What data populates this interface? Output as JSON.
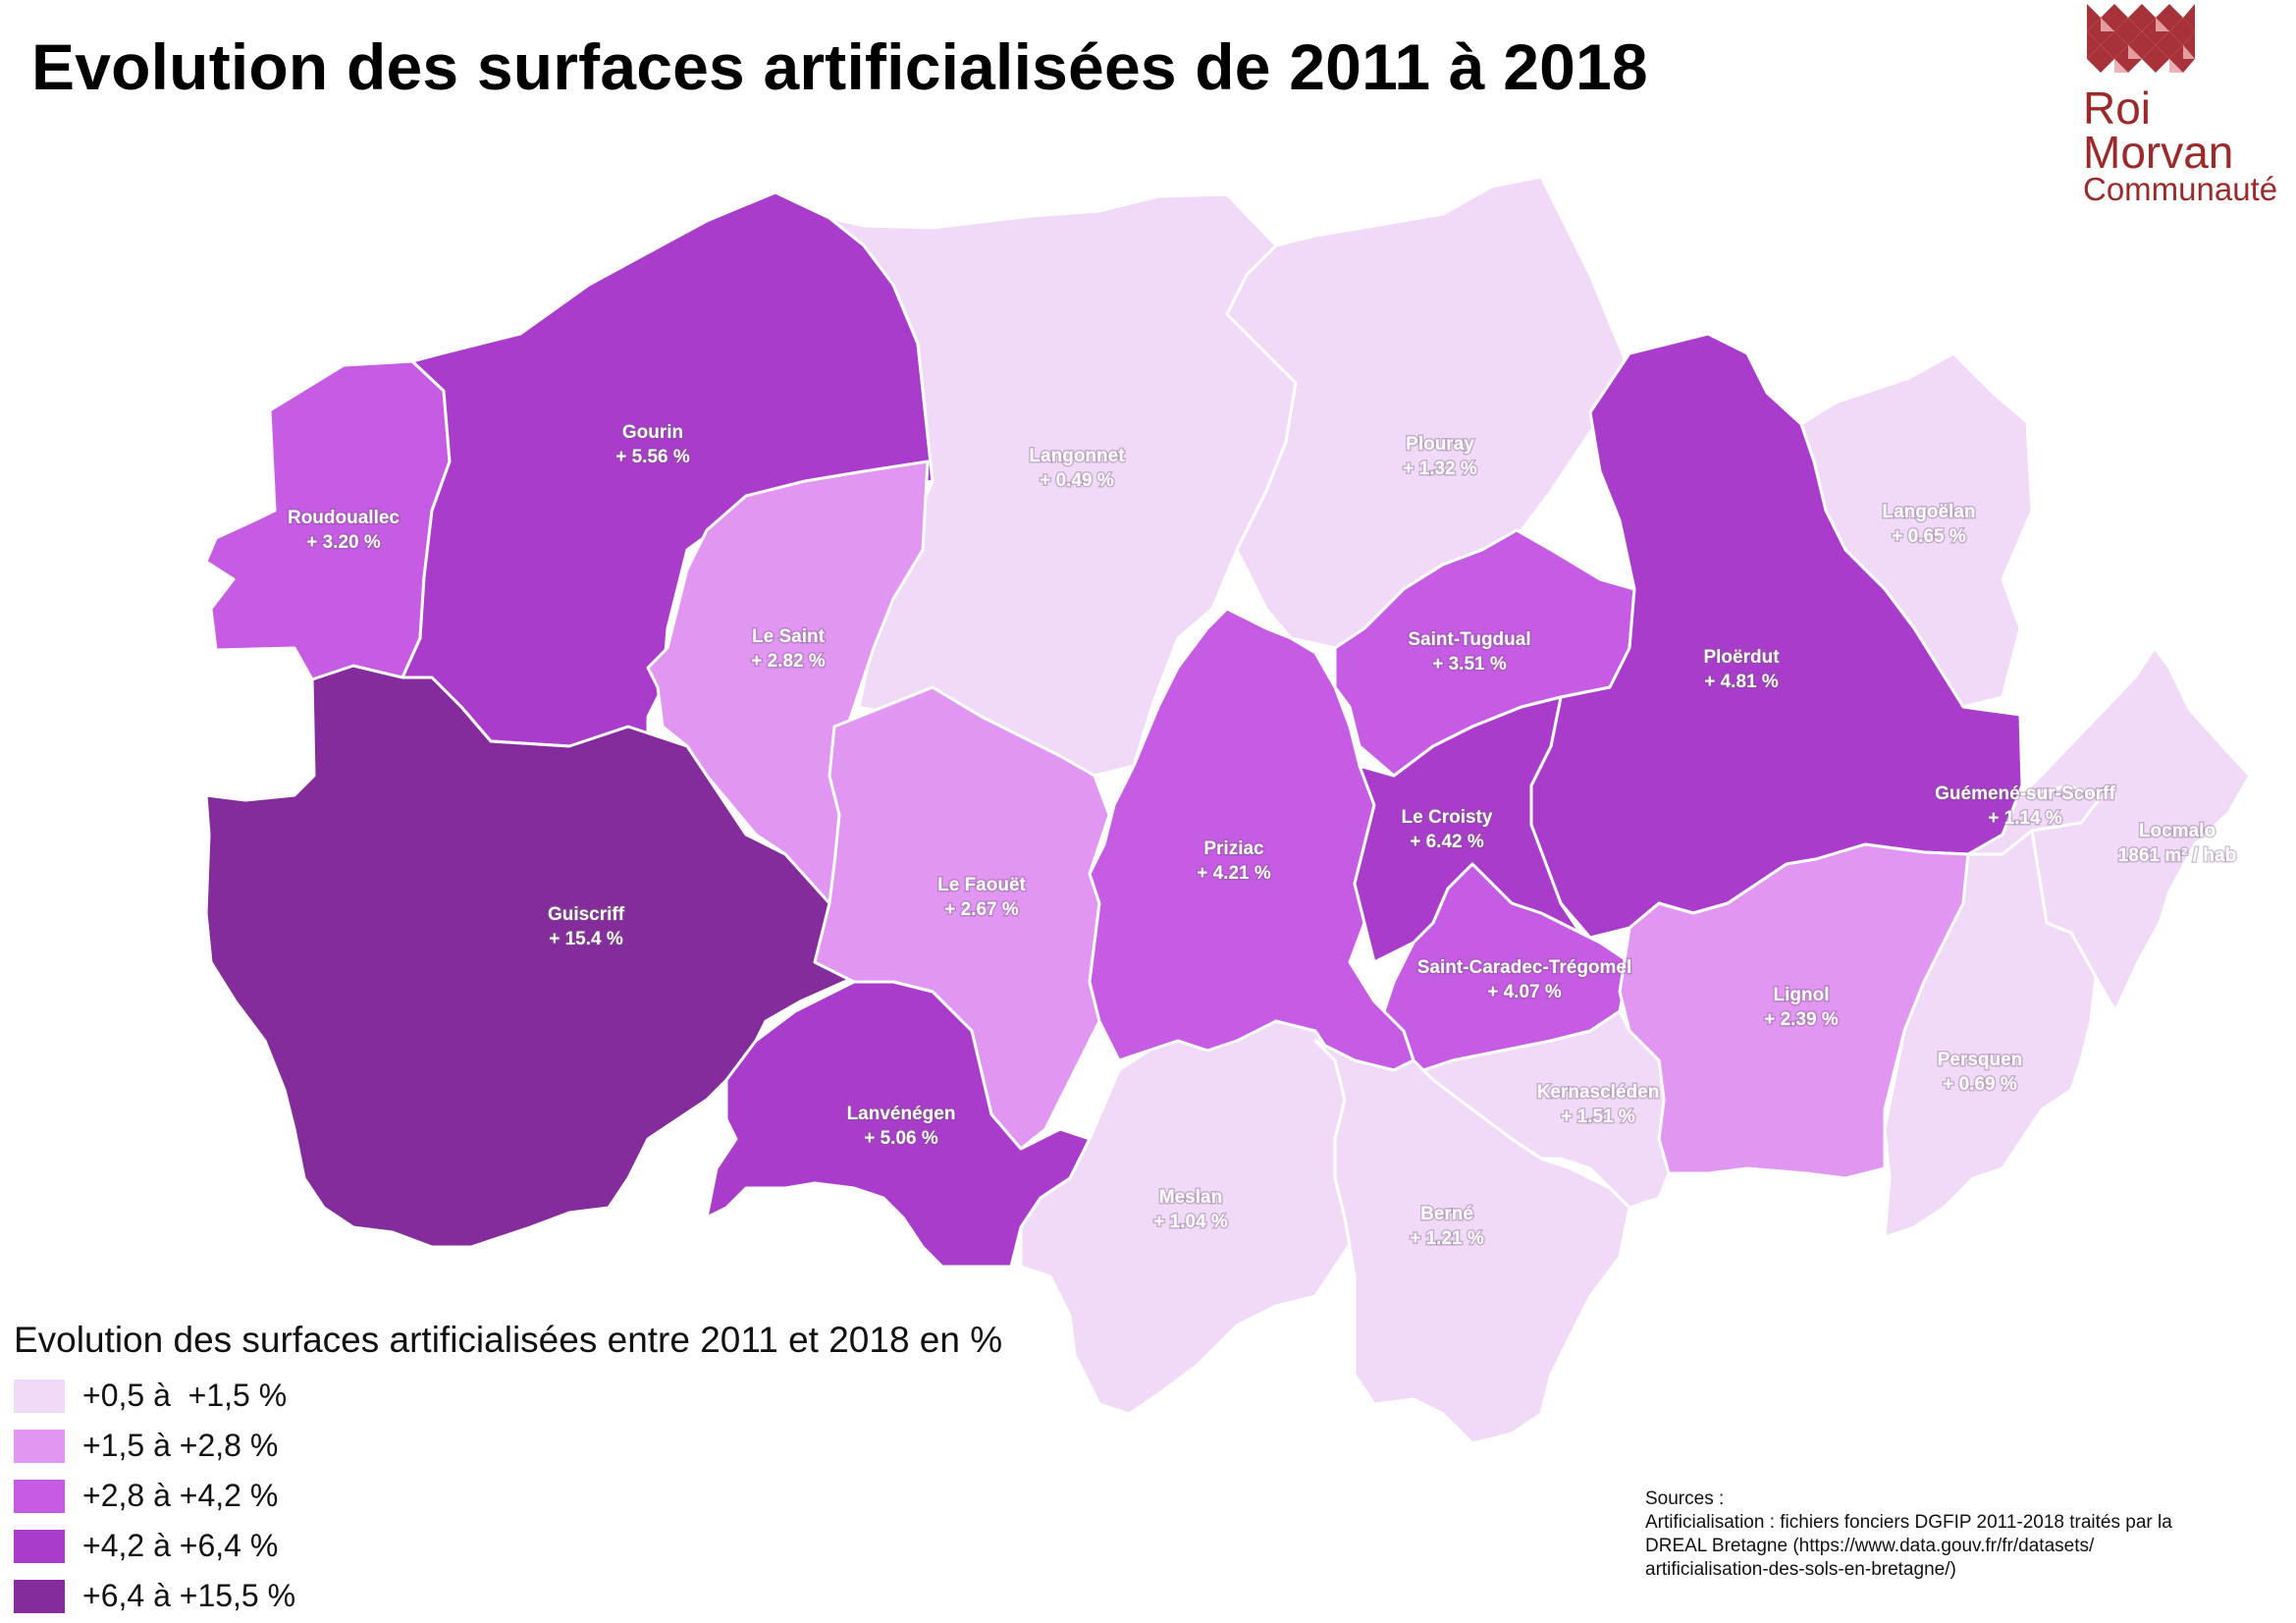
{
  "title": "Evolution des surfaces artificialisées de 2011 à 2018",
  "logo": {
    "line1": "Roi",
    "line2": "Morvan",
    "line3": "Communauté",
    "color": "#9c2a2a"
  },
  "colors": {
    "c1": "#f1daf8",
    "c2": "#e197f2",
    "c3": "#c65be4",
    "c4": "#aa3ccb",
    "c5": "#842c9c",
    "border": "#ffffff"
  },
  "communes": [
    {
      "id": "gourin",
      "name": "Gourin",
      "value": "+ 5.56 %",
      "class": "c4"
    },
    {
      "id": "roudouallec",
      "name": "Roudouallec",
      "value": "+ 3.20 %",
      "class": "c3"
    },
    {
      "id": "langonnet",
      "name": "Langonnet",
      "value": "+ 0.49 %",
      "class": "c1"
    },
    {
      "id": "plouray",
      "name": "Plouray",
      "value": "+ 1.32 %",
      "class": "c1"
    },
    {
      "id": "langoelan",
      "name": "Langoëlan",
      "value": "+ 0.65 %",
      "class": "c1"
    },
    {
      "id": "le-saint",
      "name": "Le Saint",
      "value": "+ 2.82 %",
      "class": "c2"
    },
    {
      "id": "saint-tugdual",
      "name": "Saint-Tugdual",
      "value": "+ 3.51 %",
      "class": "c3"
    },
    {
      "id": "ploerdut",
      "name": "Ploërdut",
      "value": "+ 4.81 %",
      "class": "c4"
    },
    {
      "id": "guiscriff",
      "name": "Guiscriff",
      "value": "+ 15.4 %",
      "class": "c5"
    },
    {
      "id": "le-faouet",
      "name": "Le Faouët",
      "value": "+ 2.67 %",
      "class": "c2"
    },
    {
      "id": "priziac",
      "name": "Priziac",
      "value": "+ 4.21 %",
      "class": "c3"
    },
    {
      "id": "le-croisty",
      "name": "Le Croisty",
      "value": "+ 6.42 %",
      "class": "c4"
    },
    {
      "id": "guemene-sur-scorff",
      "name": "Guémené-sur-Scorff",
      "value": "+ 1.14 %",
      "class": "c1"
    },
    {
      "id": "locmalo",
      "name": "Locmalo",
      "value": "1861 m² / hab",
      "class": "c1"
    },
    {
      "id": "saint-caradec-tregomel",
      "name": "Saint-Caradec-Trégomel",
      "value": "+ 4.07 %",
      "class": "c3"
    },
    {
      "id": "lignol",
      "name": "Lignol",
      "value": "+ 2.39 %",
      "class": "c2"
    },
    {
      "id": "lanvenegen",
      "name": "Lanvénégen",
      "value": "+ 5.06 %",
      "class": "c4"
    },
    {
      "id": "kernascleden",
      "name": "Kernascléden",
      "value": "+ 1.51 %",
      "class": "c1"
    },
    {
      "id": "persquen",
      "name": "Persquen",
      "value": "+ 0.69 %",
      "class": "c1"
    },
    {
      "id": "meslan",
      "name": "Meslan",
      "value": "+ 1.04 %",
      "class": "c1"
    },
    {
      "id": "berne",
      "name": "Berné",
      "value": "+ 1.21 %",
      "class": "c1"
    }
  ],
  "legend": {
    "title": "Evolution des surfaces artificialisées entre 2011 et 2018 en %",
    "items": [
      {
        "label": "+0,5 à  +1,5 %",
        "color": "#f1daf8"
      },
      {
        "label": "+1,5 à +2,8 %",
        "color": "#e197f2"
      },
      {
        "label": "+2,8 à +4,2 %",
        "color": "#c65be4"
      },
      {
        "label": "+4,2 à +6,4 %",
        "color": "#aa3ccb"
      },
      {
        "label": "+6,4 à +15,5 %",
        "color": "#842c9c"
      }
    ]
  },
  "sources": {
    "heading": "Sources :",
    "line1": "Artificialisation : fichiers fonciers DGFIP 2011-2018 traités par la",
    "line2": "DREAL Bretagne (https://www.data.gouv.fr/fr/datasets/",
    "line3": "artificialisation-des-sols-en-bretagne/)"
  }
}
